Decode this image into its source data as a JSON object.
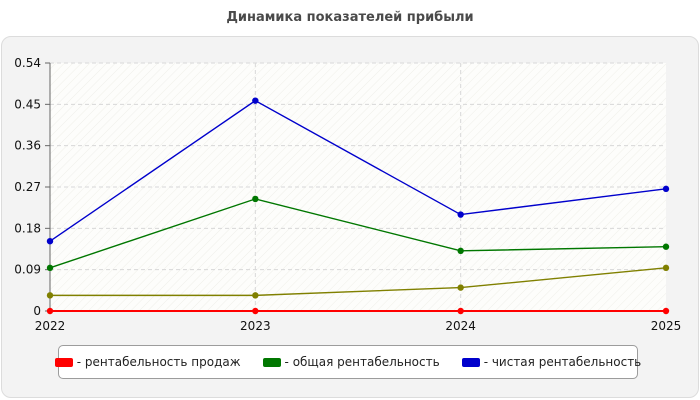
{
  "chart_data": {
    "type": "line",
    "title": "Динамика показателей прибыли",
    "x": [
      "2022",
      "2023",
      "2024",
      "2025"
    ],
    "y_ticks": [
      "0",
      "0.09",
      "0.18",
      "0.27",
      "0.36",
      "0.45",
      "0.54"
    ],
    "ylim": [
      0,
      0.54
    ],
    "grid": true,
    "legend_position": "bottom",
    "series": [
      {
        "name": "- рентабельность продаж",
        "color": "#ff0000",
        "values": [
          0,
          0,
          0,
          0
        ]
      },
      {
        "name": "- общая рентабельность",
        "color": "#007700",
        "values": [
          0.094,
          0.244,
          0.131,
          0.14
        ]
      },
      {
        "name": "- чистая рентабельность",
        "color": "#0000cc",
        "values": [
          0.152,
          0.458,
          0.21,
          0.266
        ]
      },
      {
        "color": "#808000",
        "values": [
          0.034,
          0.034,
          0.051,
          0.094
        ]
      }
    ]
  }
}
